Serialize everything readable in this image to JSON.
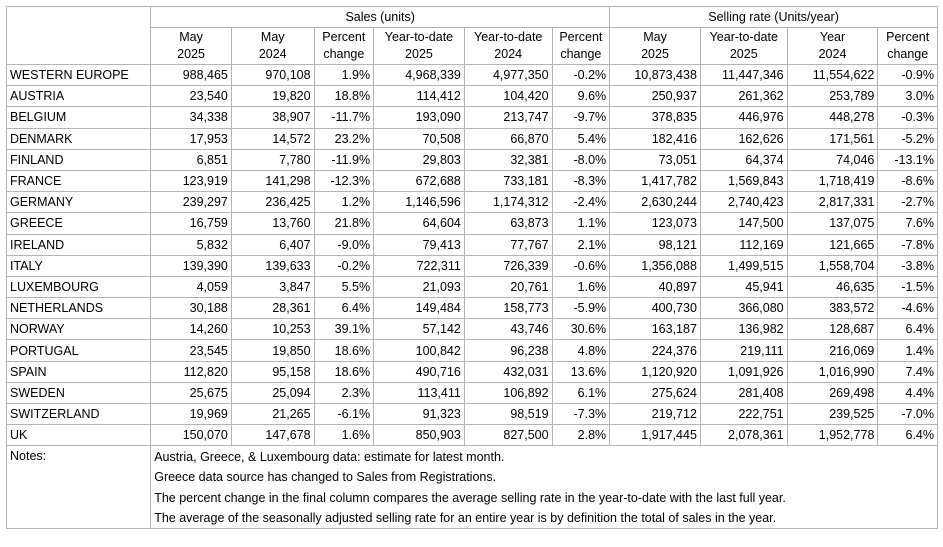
{
  "header": {
    "sales_group": "Sales (units)",
    "rate_group": "Selling rate (Units/year)",
    "columns": [
      [
        "May",
        "2025"
      ],
      [
        "May",
        "2024"
      ],
      [
        "Percent",
        "change"
      ],
      [
        "Year-to-date",
        "2025"
      ],
      [
        "Year-to-date",
        "2024"
      ],
      [
        "Percent",
        "change"
      ],
      [
        "May",
        "2025"
      ],
      [
        "Year-to-date",
        "2025"
      ],
      [
        "Year",
        "2024"
      ],
      [
        "Percent",
        "change"
      ]
    ]
  },
  "rows": [
    [
      "WESTERN EUROPE",
      "988,465",
      "970,108",
      "1.9%",
      "4,968,339",
      "4,977,350",
      "-0.2%",
      "10,873,438",
      "11,447,346",
      "11,554,622",
      "-0.9%"
    ],
    [
      "AUSTRIA",
      "23,540",
      "19,820",
      "18.8%",
      "114,412",
      "104,420",
      "9.6%",
      "250,937",
      "261,362",
      "253,789",
      "3.0%"
    ],
    [
      "BELGIUM",
      "34,338",
      "38,907",
      "-11.7%",
      "193,090",
      "213,747",
      "-9.7%",
      "378,835",
      "446,976",
      "448,278",
      "-0.3%"
    ],
    [
      "DENMARK",
      "17,953",
      "14,572",
      "23.2%",
      "70,508",
      "66,870",
      "5.4%",
      "182,416",
      "162,626",
      "171,561",
      "-5.2%"
    ],
    [
      "FINLAND",
      "6,851",
      "7,780",
      "-11.9%",
      "29,803",
      "32,381",
      "-8.0%",
      "73,051",
      "64,374",
      "74,046",
      "-13.1%"
    ],
    [
      "FRANCE",
      "123,919",
      "141,298",
      "-12.3%",
      "672,688",
      "733,181",
      "-8.3%",
      "1,417,782",
      "1,569,843",
      "1,718,419",
      "-8.6%"
    ],
    [
      "GERMANY",
      "239,297",
      "236,425",
      "1.2%",
      "1,146,596",
      "1,174,312",
      "-2.4%",
      "2,630,244",
      "2,740,423",
      "2,817,331",
      "-2.7%"
    ],
    [
      "GREECE",
      "16,759",
      "13,760",
      "21.8%",
      "64,604",
      "63,873",
      "1.1%",
      "123,073",
      "147,500",
      "137,075",
      "7.6%"
    ],
    [
      "IRELAND",
      "5,832",
      "6,407",
      "-9.0%",
      "79,413",
      "77,767",
      "2.1%",
      "98,121",
      "112,169",
      "121,665",
      "-7.8%"
    ],
    [
      "ITALY",
      "139,390",
      "139,633",
      "-0.2%",
      "722,311",
      "726,339",
      "-0.6%",
      "1,356,088",
      "1,499,515",
      "1,558,704",
      "-3.8%"
    ],
    [
      "LUXEMBOURG",
      "4,059",
      "3,847",
      "5.5%",
      "21,093",
      "20,761",
      "1.6%",
      "40,897",
      "45,941",
      "46,635",
      "-1.5%"
    ],
    [
      "NETHERLANDS",
      "30,188",
      "28,361",
      "6.4%",
      "149,484",
      "158,773",
      "-5.9%",
      "400,730",
      "366,080",
      "383,572",
      "-4.6%"
    ],
    [
      "NORWAY",
      "14,260",
      "10,253",
      "39.1%",
      "57,142",
      "43,746",
      "30.6%",
      "163,187",
      "136,982",
      "128,687",
      "6.4%"
    ],
    [
      "PORTUGAL",
      "23,545",
      "19,850",
      "18.6%",
      "100,842",
      "96,238",
      "4.8%",
      "224,376",
      "219,111",
      "216,069",
      "1.4%"
    ],
    [
      "SPAIN",
      "112,820",
      "95,158",
      "18.6%",
      "490,716",
      "432,031",
      "13.6%",
      "1,120,920",
      "1,091,926",
      "1,016,990",
      "7.4%"
    ],
    [
      "SWEDEN",
      "25,675",
      "25,094",
      "2.3%",
      "113,411",
      "106,892",
      "6.1%",
      "275,624",
      "281,408",
      "269,498",
      "4.4%"
    ],
    [
      "SWITZERLAND",
      "19,969",
      "21,265",
      "-6.1%",
      "91,323",
      "98,519",
      "-7.3%",
      "219,712",
      "222,751",
      "239,525",
      "-7.0%"
    ],
    [
      "UK",
      "150,070",
      "147,678",
      "1.6%",
      "850,903",
      "827,500",
      "2.8%",
      "1,917,445",
      "2,078,361",
      "1,952,778",
      "6.4%"
    ]
  ],
  "notes": {
    "label": "Notes:",
    "lines": [
      "Austria, Greece, & Luxembourg data: estimate for latest month.",
      "Greece data source has changed to Sales from Registrations.",
      "The percent change in the final column compares the average selling rate in the year-to-date with the last full year.",
      "The average of the seasonally adjusted selling rate for an entire year is by definition the total of sales in the year."
    ]
  }
}
